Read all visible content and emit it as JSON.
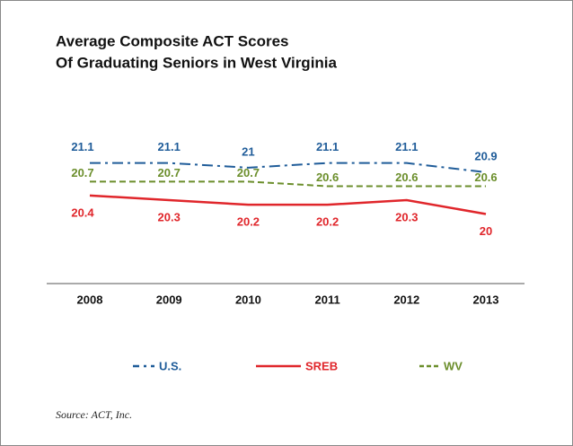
{
  "chart_data": {
    "type": "line",
    "title": [
      "Average Composite ACT Scores",
      "Of Graduating Seniors in West Virginia"
    ],
    "source": "Source: ACT, Inc.",
    "categories": [
      "2008",
      "2009",
      "2010",
      "2011",
      "2012",
      "2013"
    ],
    "ylim": [
      18.5,
      21.5
    ],
    "series": [
      {
        "name": "U.S.",
        "color": "#1f5c99",
        "linestyle": "dashdot",
        "values": [
          21.1,
          21.1,
          21.0,
          21.1,
          21.1,
          20.9
        ]
      },
      {
        "name": "SREB",
        "color": "#e0262b",
        "linestyle": "solid",
        "values": [
          20.4,
          20.3,
          20.2,
          20.2,
          20.3,
          20.0
        ]
      },
      {
        "name": "WV",
        "color": "#6b8e2b",
        "linestyle": "dashed",
        "values": [
          20.7,
          20.7,
          20.7,
          20.6,
          20.6,
          20.6
        ]
      }
    ]
  }
}
